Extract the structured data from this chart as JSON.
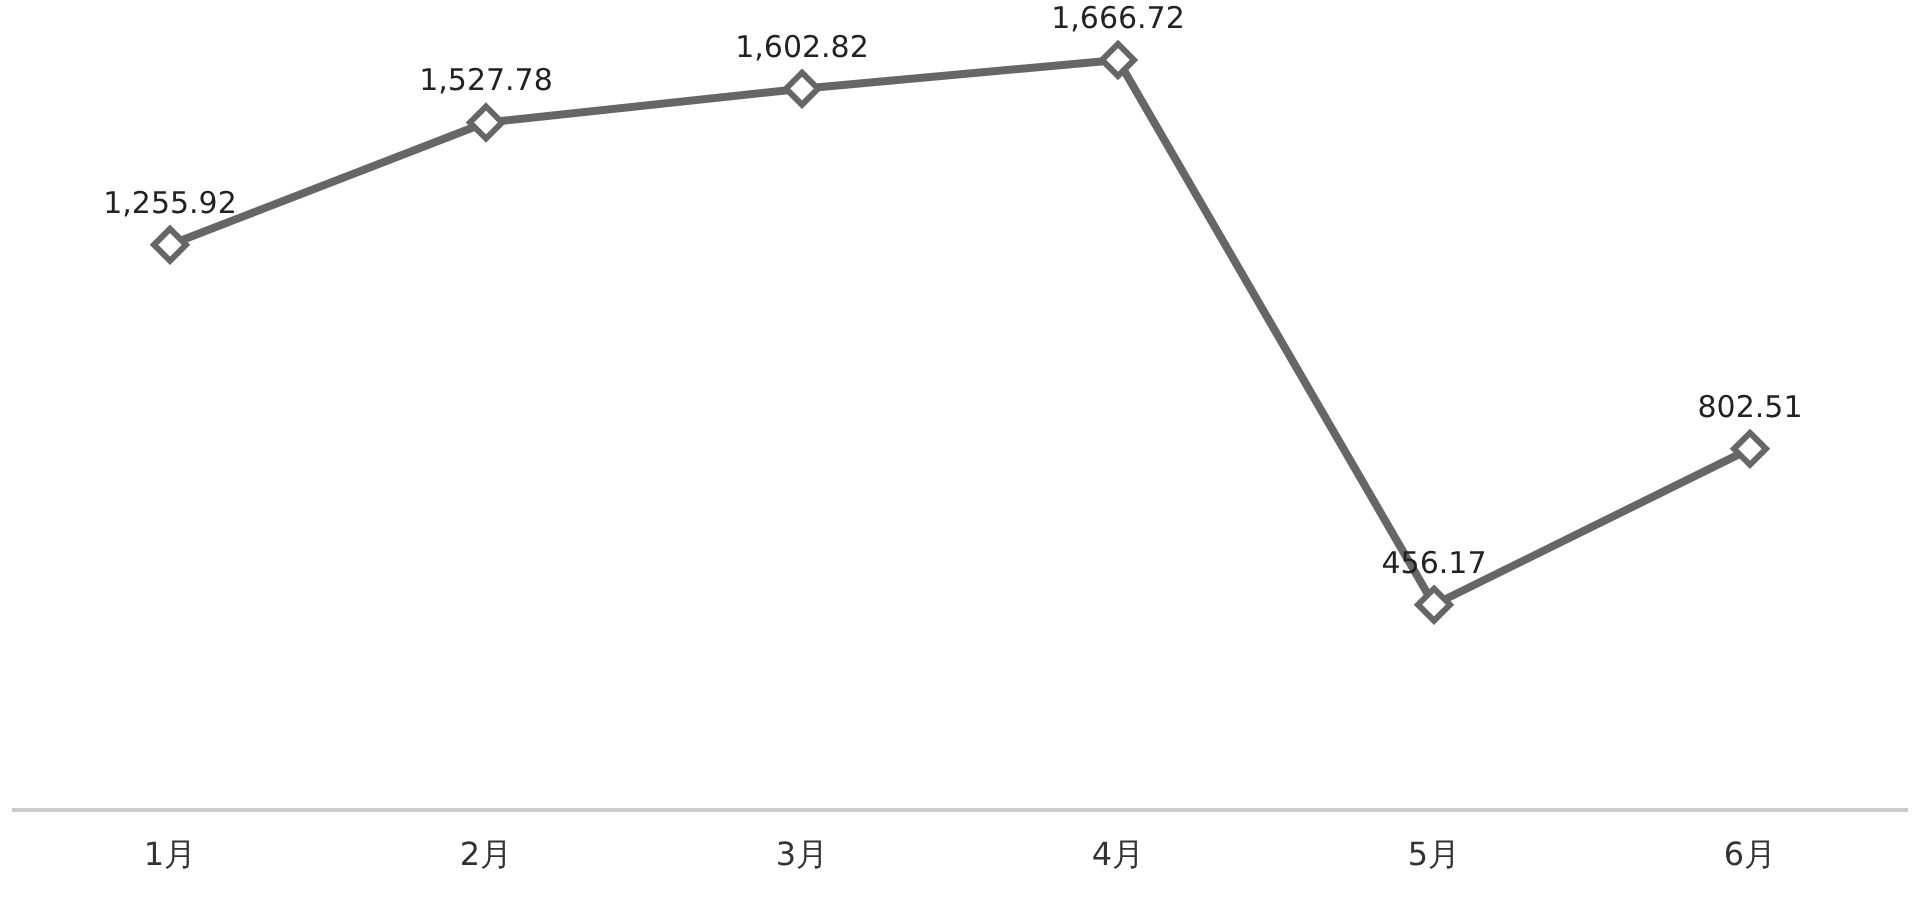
{
  "chart_data": {
    "type": "line",
    "categories": [
      "1月",
      "2月",
      "3月",
      "4月",
      "5月",
      "6月"
    ],
    "series": [
      {
        "color": "#666666",
        "values": [
          1255.92,
          1527.78,
          1602.82,
          1666.72,
          456.17,
          802.51
        ],
        "value_labels": [
          "1,255.92",
          "1,527.78",
          "1,602.82",
          "1,666.72",
          "456.17",
          "802.51"
        ]
      }
    ],
    "tick_labels": "x",
    "marker": "diamond",
    "line_style": "solid",
    "grid": false,
    "legend": false
  }
}
